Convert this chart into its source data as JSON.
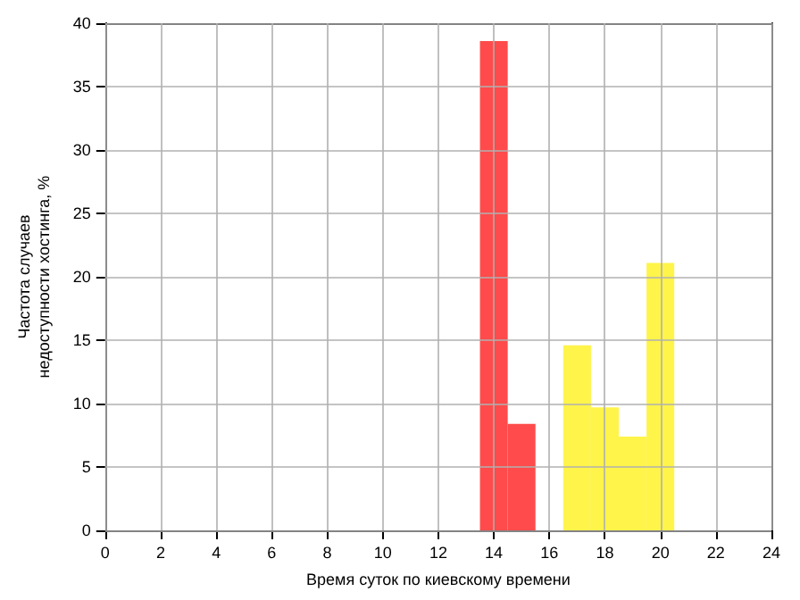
{
  "chart_data": {
    "type": "histogram",
    "xlabel": "Время суток по киевскому времени",
    "ylabel": "Частота случаев\nнедоступности хостинга, %",
    "bins": [
      13.5,
      14.5,
      15.5,
      16.5,
      17.5,
      18.5,
      19.5,
      20.5
    ],
    "values": [
      38.6,
      8.4,
      0,
      14.6,
      9.7,
      7.4,
      21.1
    ],
    "colors": [
      "#ff4b4b",
      "#ff4b4b",
      "#ff4b4b",
      "#fff44a",
      "#fff44a",
      "#fff44a",
      "#fff44a"
    ],
    "xlim": [
      0,
      24
    ],
    "xticks": [
      0,
      2,
      4,
      6,
      8,
      10,
      12,
      14,
      16,
      18,
      20,
      22,
      24
    ],
    "ylim": [
      0,
      40
    ],
    "yticks": [
      0,
      5,
      10,
      15,
      20,
      25,
      30,
      35,
      40
    ],
    "grid": true
  }
}
